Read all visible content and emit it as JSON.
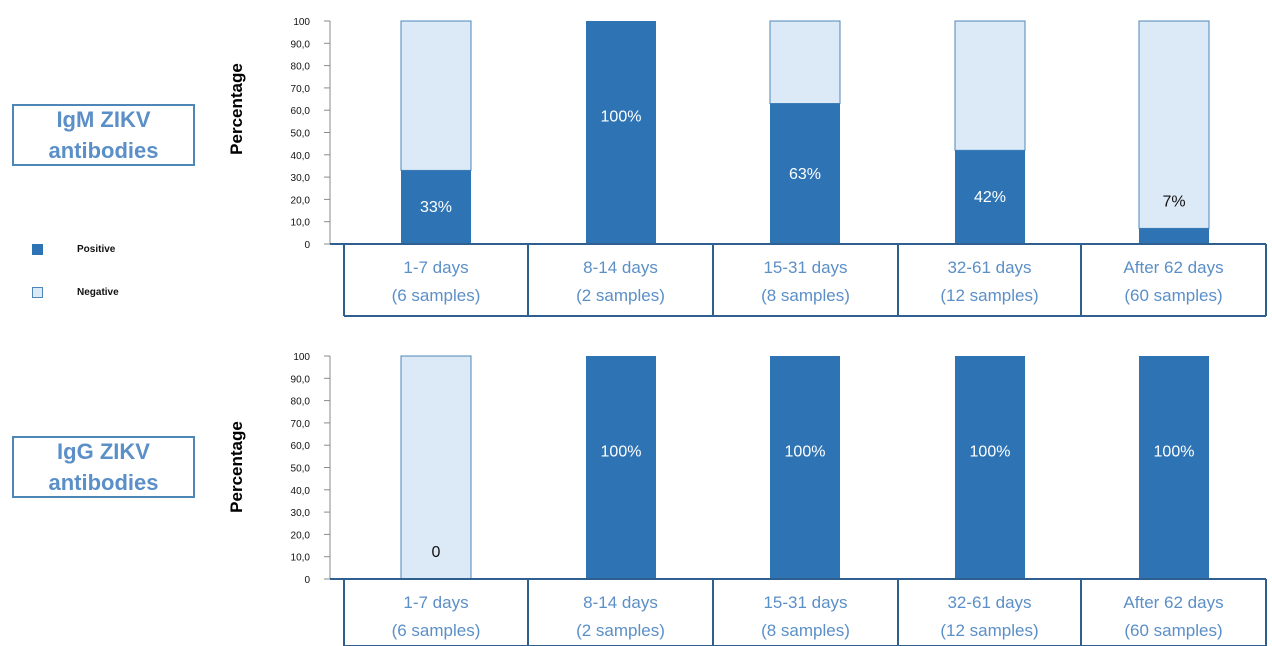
{
  "colors": {
    "positive": "#2e74b5",
    "negative": "#dce9f6",
    "negative_border": "#4f86b8",
    "accent_text": "#5b8fc7"
  },
  "legend": {
    "positive_label": "Positive",
    "negative_label": "Negative"
  },
  "chart_data": [
    {
      "type": "bar",
      "stacked": true,
      "title": "IgM ZIKV antibodies",
      "title_lines": [
        "IgM ZIKV",
        "antibodies"
      ],
      "ylabel": "Percentage",
      "ylim": [
        0,
        100
      ],
      "y_ticks": [
        "0",
        "10,0",
        "20,0",
        "30,0",
        "40,0",
        "50,0",
        "60,0",
        "70,0",
        "80,0",
        "90,0",
        "100"
      ],
      "categories": [
        {
          "line1": "1-7 days",
          "line2": "(6 samples)"
        },
        {
          "line1": "8-14 days",
          "line2": "(2 samples)"
        },
        {
          "line1": "15-31 days",
          "line2": "(8 samples)"
        },
        {
          "line1": "32-61 days",
          "line2": "(12 samples)"
        },
        {
          "line1": "After 62 days",
          "line2": "(60 samples)"
        }
      ],
      "series": [
        {
          "name": "Positive",
          "values": [
            33,
            100,
            63,
            42,
            7
          ]
        },
        {
          "name": "Negative",
          "values": [
            67,
            0,
            37,
            58,
            93
          ]
        }
      ],
      "data_labels": [
        "33%",
        "100%",
        "63%",
        "42%",
        "7%"
      ]
    },
    {
      "type": "bar",
      "stacked": true,
      "title": "IgG ZIKV antibodies",
      "title_lines": [
        "IgG ZIKV",
        "antibodies"
      ],
      "ylabel": "Percentage",
      "ylim": [
        0,
        100
      ],
      "y_ticks": [
        "0",
        "10,0",
        "20,0",
        "30,0",
        "40,0",
        "50,0",
        "60,0",
        "70,0",
        "80,0",
        "90,0",
        "100"
      ],
      "categories": [
        {
          "line1": "1-7 days",
          "line2": "(6 samples)"
        },
        {
          "line1": "8-14 days",
          "line2": "(2 samples)"
        },
        {
          "line1": "15-31 days",
          "line2": "(8 samples)"
        },
        {
          "line1": "32-61 days",
          "line2": "(12 samples)"
        },
        {
          "line1": "After 62 days",
          "line2": "(60 samples)"
        }
      ],
      "series": [
        {
          "name": "Positive",
          "values": [
            0,
            100,
            100,
            100,
            100
          ]
        },
        {
          "name": "Negative",
          "values": [
            100,
            0,
            0,
            0,
            0
          ]
        }
      ],
      "data_labels": [
        "0",
        "100%",
        "100%",
        "100%",
        "100%"
      ]
    }
  ]
}
